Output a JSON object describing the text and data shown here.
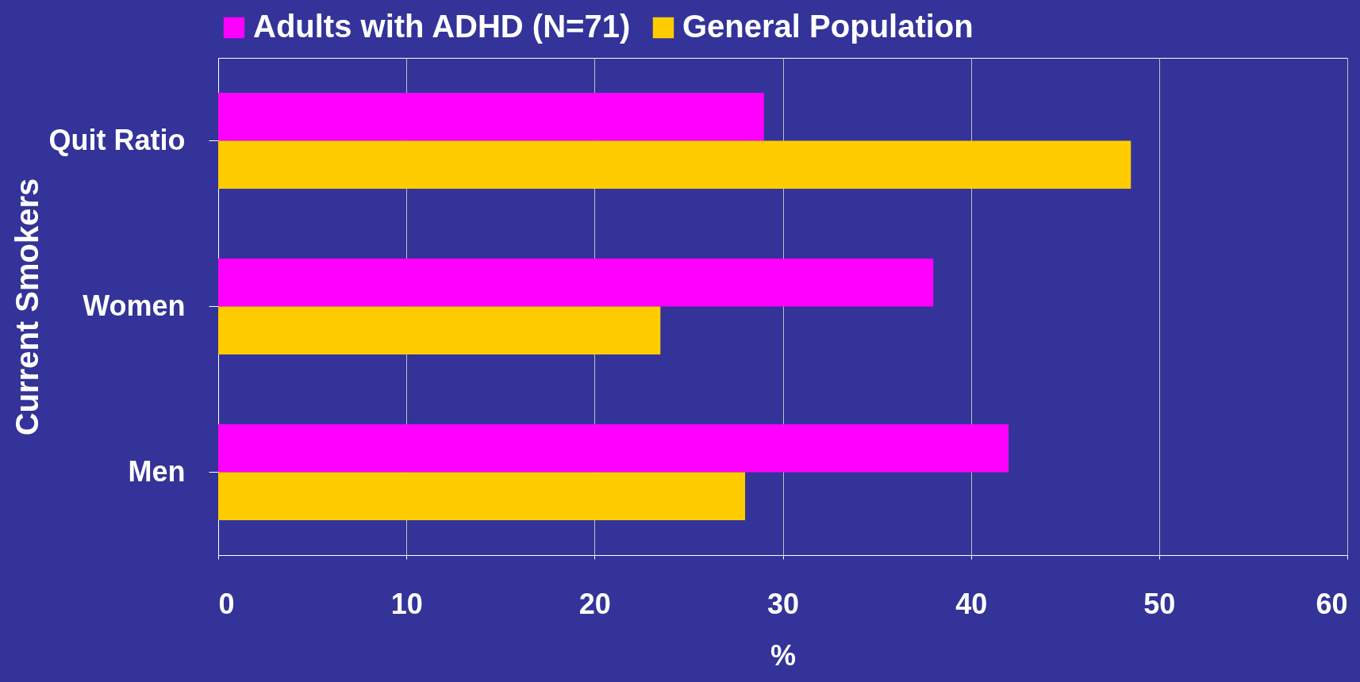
{
  "chart_data": {
    "type": "bar",
    "orientation": "horizontal",
    "ylabel": "Current Smokers",
    "xlabel": "%",
    "categories": [
      "Quit Ratio",
      "Women",
      "Men"
    ],
    "series": [
      {
        "name": "Adults with ADHD (N=71)",
        "color": "#ff00ff",
        "values": [
          29,
          38,
          42
        ]
      },
      {
        "name": "General Population",
        "color": "#ffcc00",
        "values": [
          48.5,
          23.5,
          28
        ]
      }
    ],
    "xlim": [
      0,
      60
    ],
    "xticks": [
      0,
      10,
      20,
      30,
      40,
      50,
      60
    ],
    "grid": "x",
    "legend": "top"
  }
}
